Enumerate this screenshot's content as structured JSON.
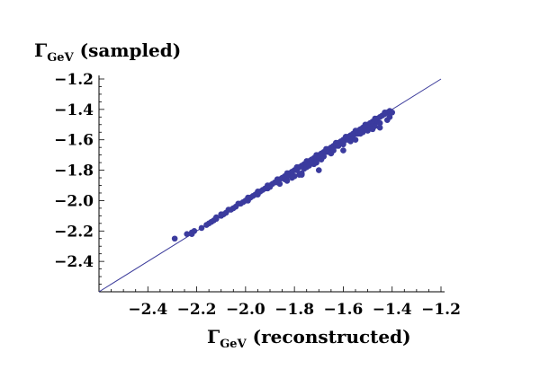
{
  "chart_data": {
    "type": "scatter",
    "title": "",
    "ylabel": {
      "symbol": "Γ",
      "subscript": "GeV",
      "suffix": " (sampled)"
    },
    "xlabel": {
      "symbol": "Γ",
      "subscript": "GeV",
      "suffix": " (reconstructed)"
    },
    "xlim": [
      -2.6,
      -1.2
    ],
    "ylim": [
      -2.6,
      -1.2
    ],
    "x_ticks": [
      -2.4,
      -2.2,
      -2.0,
      -1.8,
      -1.6,
      -1.4,
      -1.2
    ],
    "y_ticks": [
      -1.2,
      -1.4,
      -1.6,
      -1.8,
      -2.0,
      -2.2,
      -2.4
    ],
    "x_tick_labels": [
      "−2.4",
      "−2.2",
      "−2.0",
      "−1.8",
      "−1.6",
      "−1.4",
      "−1.2"
    ],
    "y_tick_labels": [
      "−1.2",
      "−1.4",
      "−1.6",
      "−1.8",
      "−2.0",
      "−2.2",
      "−2.4"
    ],
    "reference_line": {
      "slope": 1,
      "intercept": 0,
      "color": "#3a3a9a"
    },
    "point_color": "#3b3b9e",
    "grid": false,
    "points": [
      [
        -2.29,
        -2.25
      ],
      [
        -2.24,
        -2.22
      ],
      [
        -2.22,
        -2.21
      ],
      [
        -2.21,
        -2.2
      ],
      [
        -2.18,
        -2.18
      ],
      [
        -2.16,
        -2.16
      ],
      [
        -2.14,
        -2.14
      ],
      [
        -2.13,
        -2.13
      ],
      [
        -2.12,
        -2.12
      ],
      [
        -2.1,
        -2.1
      ],
      [
        -2.09,
        -2.09
      ],
      [
        -2.08,
        -2.08
      ],
      [
        -2.06,
        -2.06
      ],
      [
        -2.05,
        -2.05
      ],
      [
        -2.04,
        -2.04
      ],
      [
        -2.02,
        -2.02
      ],
      [
        -2.01,
        -2.01
      ],
      [
        -2.0,
        -2.0
      ],
      [
        -1.98,
        -1.98
      ],
      [
        -1.97,
        -1.97
      ],
      [
        -1.96,
        -1.96
      ],
      [
        -1.94,
        -1.94
      ],
      [
        -1.93,
        -1.93
      ],
      [
        -1.92,
        -1.92
      ],
      [
        -1.9,
        -1.9
      ],
      [
        -1.89,
        -1.89
      ],
      [
        -1.88,
        -1.88
      ],
      [
        -1.86,
        -1.86
      ],
      [
        -1.85,
        -1.85
      ],
      [
        -1.84,
        -1.84
      ],
      [
        -1.83,
        -1.83
      ],
      [
        -1.82,
        -1.82
      ],
      [
        -1.81,
        -1.81
      ],
      [
        -1.8,
        -1.8
      ],
      [
        -1.79,
        -1.79
      ],
      [
        -1.78,
        -1.78
      ],
      [
        -1.77,
        -1.77
      ],
      [
        -1.76,
        -1.76
      ],
      [
        -1.75,
        -1.75
      ],
      [
        -1.74,
        -1.74
      ],
      [
        -1.73,
        -1.73
      ],
      [
        -1.72,
        -1.72
      ],
      [
        -1.71,
        -1.71
      ],
      [
        -1.7,
        -1.7
      ],
      [
        -1.69,
        -1.69
      ],
      [
        -1.68,
        -1.68
      ],
      [
        -1.67,
        -1.67
      ],
      [
        -1.66,
        -1.66
      ],
      [
        -1.65,
        -1.65
      ],
      [
        -1.64,
        -1.64
      ],
      [
        -1.63,
        -1.63
      ],
      [
        -1.62,
        -1.62
      ],
      [
        -1.61,
        -1.61
      ],
      [
        -1.6,
        -1.6
      ],
      [
        -1.59,
        -1.59
      ],
      [
        -1.58,
        -1.58
      ],
      [
        -1.57,
        -1.57
      ],
      [
        -1.56,
        -1.56
      ],
      [
        -1.55,
        -1.55
      ],
      [
        -1.54,
        -1.54
      ],
      [
        -1.53,
        -1.53
      ],
      [
        -1.52,
        -1.52
      ],
      [
        -1.51,
        -1.51
      ],
      [
        -1.5,
        -1.5
      ],
      [
        -1.49,
        -1.49
      ],
      [
        -1.48,
        -1.48
      ],
      [
        -1.47,
        -1.47
      ],
      [
        -1.46,
        -1.46
      ],
      [
        -1.45,
        -1.45
      ],
      [
        -1.44,
        -1.44
      ],
      [
        -1.43,
        -1.43
      ],
      [
        -1.42,
        -1.42
      ],
      [
        -1.41,
        -1.41
      ],
      [
        -2.1,
        -2.09
      ],
      [
        -2.07,
        -2.06
      ],
      [
        -2.03,
        -2.02
      ],
      [
        -1.99,
        -1.98
      ],
      [
        -1.95,
        -1.94
      ],
      [
        -1.91,
        -1.9
      ],
      [
        -1.87,
        -1.86
      ],
      [
        -1.83,
        -1.82
      ],
      [
        -1.79,
        -1.78
      ],
      [
        -1.75,
        -1.74
      ],
      [
        -1.71,
        -1.7
      ],
      [
        -1.67,
        -1.66
      ],
      [
        -1.63,
        -1.62
      ],
      [
        -1.59,
        -1.58
      ],
      [
        -1.55,
        -1.54
      ],
      [
        -1.51,
        -1.5
      ],
      [
        -1.47,
        -1.46
      ],
      [
        -1.43,
        -1.42
      ],
      [
        -1.99,
        -2.0
      ],
      [
        -1.95,
        -1.96
      ],
      [
        -1.91,
        -1.92
      ],
      [
        -1.87,
        -1.88
      ],
      [
        -1.83,
        -1.84
      ],
      [
        -1.79,
        -1.8
      ],
      [
        -1.75,
        -1.76
      ],
      [
        -1.71,
        -1.72
      ],
      [
        -1.67,
        -1.68
      ],
      [
        -1.63,
        -1.64
      ],
      [
        -1.59,
        -1.6
      ],
      [
        -1.55,
        -1.56
      ],
      [
        -1.51,
        -1.52
      ],
      [
        -1.47,
        -1.48
      ],
      [
        -2.22,
        -2.22
      ],
      [
        -2.12,
        -2.11
      ],
      [
        -2.15,
        -2.15
      ],
      [
        -1.9,
        -1.91
      ],
      [
        -1.84,
        -1.86
      ],
      [
        -1.76,
        -1.79
      ],
      [
        -1.74,
        -1.76
      ],
      [
        -1.7,
        -1.72
      ],
      [
        -1.66,
        -1.68
      ],
      [
        -1.62,
        -1.64
      ],
      [
        -1.58,
        -1.6
      ],
      [
        -1.54,
        -1.56
      ],
      [
        -1.5,
        -1.52
      ],
      [
        -1.46,
        -1.48
      ],
      [
        -1.8,
        -1.84
      ],
      [
        -1.78,
        -1.83
      ],
      [
        -1.77,
        -1.82
      ],
      [
        -1.75,
        -1.78
      ],
      [
        -1.72,
        -1.76
      ],
      [
        -1.69,
        -1.73
      ],
      [
        -1.68,
        -1.71
      ],
      [
        -1.64,
        -1.67
      ],
      [
        -1.6,
        -1.63
      ],
      [
        -1.56,
        -1.59
      ],
      [
        -1.52,
        -1.55
      ],
      [
        -1.48,
        -1.51
      ],
      [
        -1.86,
        -1.89
      ],
      [
        -1.81,
        -1.85
      ],
      [
        -1.83,
        -1.87
      ],
      [
        -1.71,
        -1.75
      ],
      [
        -1.65,
        -1.69
      ],
      [
        -1.6,
        -1.62
      ],
      [
        -1.57,
        -1.61
      ],
      [
        -1.53,
        -1.56
      ],
      [
        -1.5,
        -1.54
      ],
      [
        -1.47,
        -1.51
      ],
      [
        -1.45,
        -1.49
      ],
      [
        -1.45,
        -1.52
      ],
      [
        -1.42,
        -1.47
      ],
      [
        -1.4,
        -1.42
      ],
      [
        -1.41,
        -1.45
      ],
      [
        -1.48,
        -1.53
      ],
      [
        -1.55,
        -1.6
      ],
      [
        -1.6,
        -1.67
      ],
      [
        -1.7,
        -1.8
      ],
      [
        -1.77,
        -1.83
      ],
      [
        -1.74,
        -1.77
      ]
    ]
  }
}
